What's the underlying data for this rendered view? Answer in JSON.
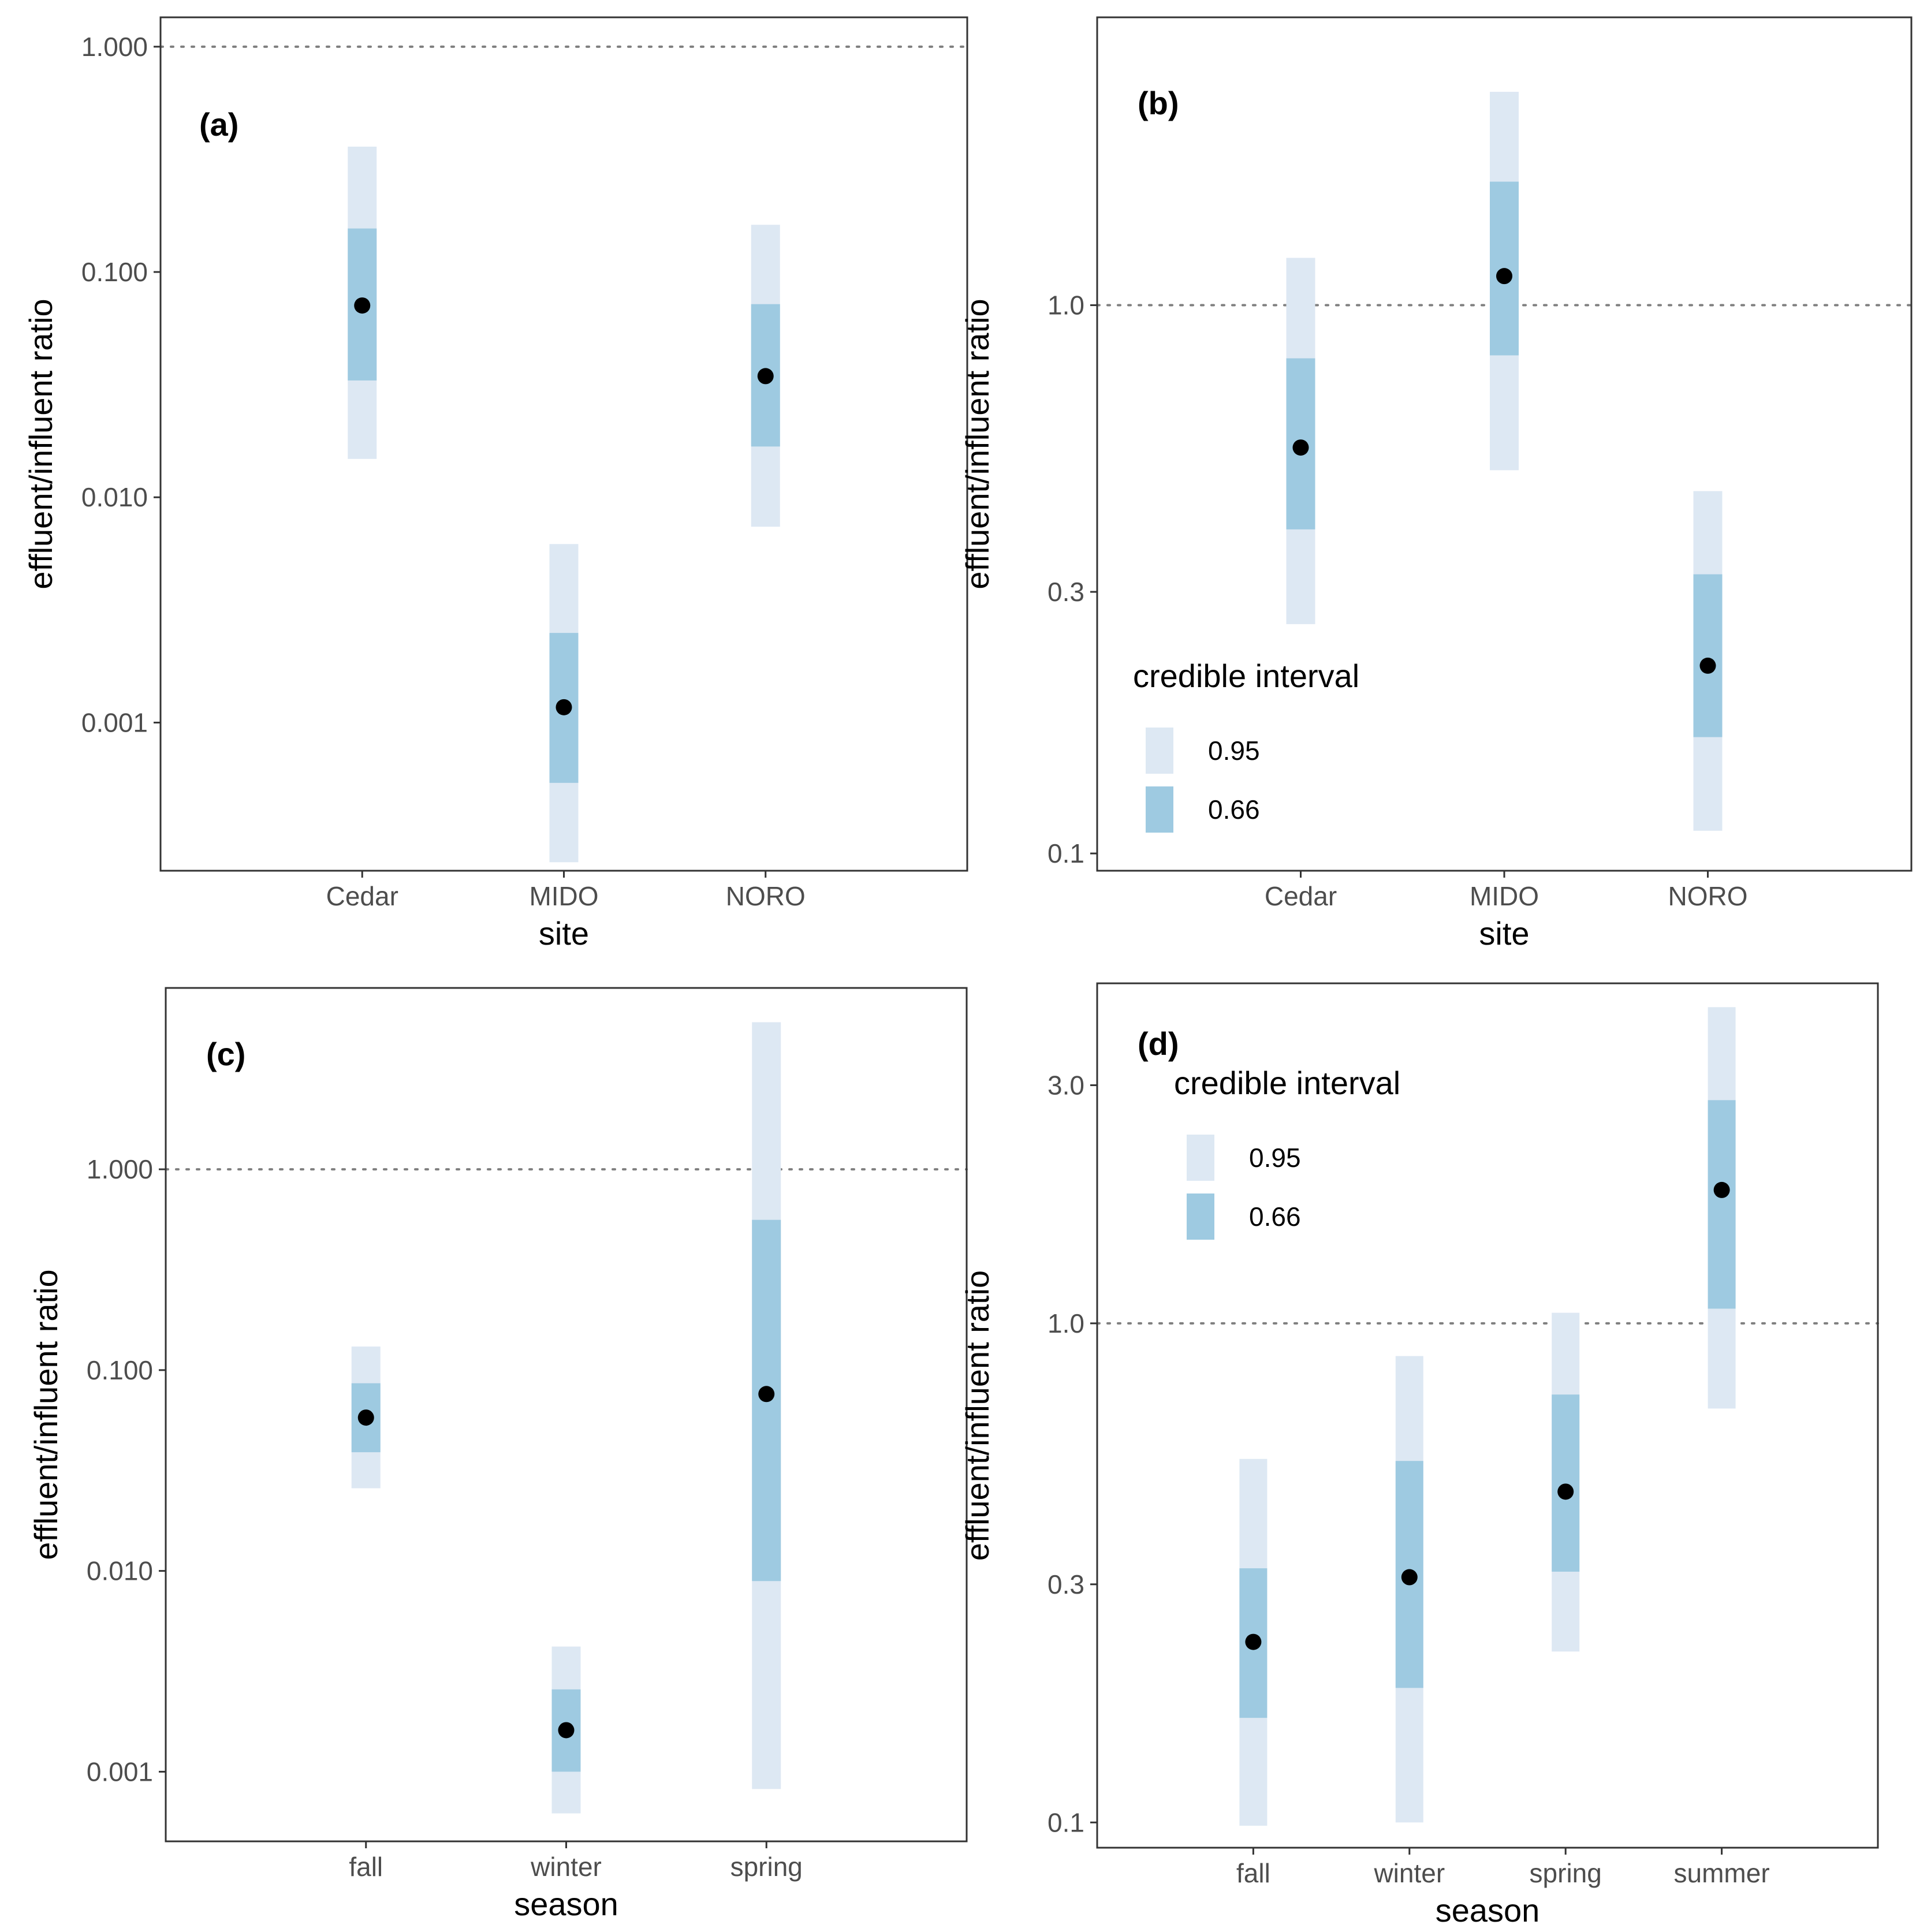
{
  "colors": {
    "ci95": "#dde8f3",
    "ci66": "#9ecae1",
    "point": "#000000",
    "refline": "#7f7f7f",
    "frame": "#333333"
  },
  "chart_data": [
    {
      "type": "pointrange",
      "panel_label": "(a)",
      "xlabel": "site",
      "ylabel": "effluent/influent ratio",
      "yscale": "log10",
      "ylim": [
        0.00022,
        1.35
      ],
      "yticks": [
        0.001,
        0.01,
        0.1,
        1
      ],
      "ytick_labels": [
        "0.001",
        "0.010",
        "0.100",
        "1.000"
      ],
      "reference_line": 1,
      "categories": [
        "Cedar",
        "MIDO",
        "NORO"
      ],
      "series": [
        {
          "name": "median",
          "values": [
            0.071,
            0.00117,
            0.0345
          ]
        },
        {
          "name": "ci66_low",
          "values": [
            0.033,
            0.00054,
            0.0168
          ]
        },
        {
          "name": "ci66_high",
          "values": [
            0.156,
            0.0025,
            0.072
          ]
        },
        {
          "name": "ci95_low",
          "values": [
            0.0148,
            0.00024,
            0.0074
          ]
        },
        {
          "name": "ci95_high",
          "values": [
            0.36,
            0.0062,
            0.162
          ]
        }
      ],
      "legend": null
    },
    {
      "type": "pointrange",
      "panel_label": "(b)",
      "xlabel": "site",
      "ylabel": "effluent/influent ratio",
      "yscale": "log10",
      "ylim": [
        0.093,
        3.35
      ],
      "yticks": [
        0.1,
        0.3,
        1
      ],
      "ytick_labels": [
        "0.1",
        "0.3",
        "1.0"
      ],
      "reference_line": 1,
      "categories": [
        "Cedar",
        "MIDO",
        "NORO"
      ],
      "series": [
        {
          "name": "median",
          "values": [
            0.55,
            1.13,
            0.22
          ]
        },
        {
          "name": "ci66_low",
          "values": [
            0.39,
            0.81,
            0.163
          ]
        },
        {
          "name": "ci66_high",
          "values": [
            0.8,
            1.68,
            0.323
          ]
        },
        {
          "name": "ci95_low",
          "values": [
            0.262,
            0.5,
            0.11
          ]
        },
        {
          "name": "ci95_high",
          "values": [
            1.22,
            2.45,
            0.458
          ]
        }
      ],
      "legend": {
        "title": "credible interval",
        "labels": [
          "0.95",
          "0.66"
        ],
        "position": "bottom-left"
      }
    },
    {
      "type": "pointrange",
      "panel_label": "(c)",
      "xlabel": "season",
      "ylabel": "effluent/influent ratio",
      "yscale": "log10",
      "ylim": [
        0.00045,
        8.0
      ],
      "yticks": [
        0.001,
        0.01,
        0.1,
        1
      ],
      "ytick_labels": [
        "0.001",
        "0.010",
        "0.100",
        "1.000"
      ],
      "reference_line": 1,
      "categories": [
        "fall",
        "winter",
        "spring"
      ],
      "series": [
        {
          "name": "median",
          "values": [
            0.058,
            0.00161,
            0.076
          ]
        },
        {
          "name": "ci66_low",
          "values": [
            0.039,
            0.001,
            0.0089
          ]
        },
        {
          "name": "ci66_high",
          "values": [
            0.086,
            0.00257,
            0.56
          ]
        },
        {
          "name": "ci95_low",
          "values": [
            0.0258,
            0.00062,
            0.00082
          ]
        },
        {
          "name": "ci95_high",
          "values": [
            0.131,
            0.0042,
            5.4
          ]
        }
      ],
      "legend": null
    },
    {
      "type": "pointrange",
      "panel_label": "(d)",
      "xlabel": "season",
      "ylabel": "effluent/influent ratio",
      "yscale": "log10",
      "ylim": [
        0.089,
        4.8
      ],
      "yticks": [
        0.1,
        0.3,
        1,
        3
      ],
      "ytick_labels": [
        "0.1",
        "0.3",
        "1.0",
        "3.0"
      ],
      "reference_line": 1,
      "categories": [
        "fall",
        "winter",
        "spring",
        "summer"
      ],
      "series": [
        {
          "name": "median",
          "values": [
            0.23,
            0.31,
            0.46,
            1.85
          ]
        },
        {
          "name": "ci66_low",
          "values": [
            0.162,
            0.186,
            0.318,
            1.07
          ]
        },
        {
          "name": "ci66_high",
          "values": [
            0.323,
            0.53,
            0.72,
            2.8
          ]
        },
        {
          "name": "ci95_low",
          "values": [
            0.0985,
            0.1,
            0.22,
            0.675
          ]
        },
        {
          "name": "ci95_high",
          "values": [
            0.535,
            0.86,
            1.05,
            4.3
          ]
        }
      ],
      "legend": {
        "title": "credible interval",
        "labels": [
          "0.95",
          "0.66"
        ],
        "position": "top-left"
      }
    }
  ]
}
